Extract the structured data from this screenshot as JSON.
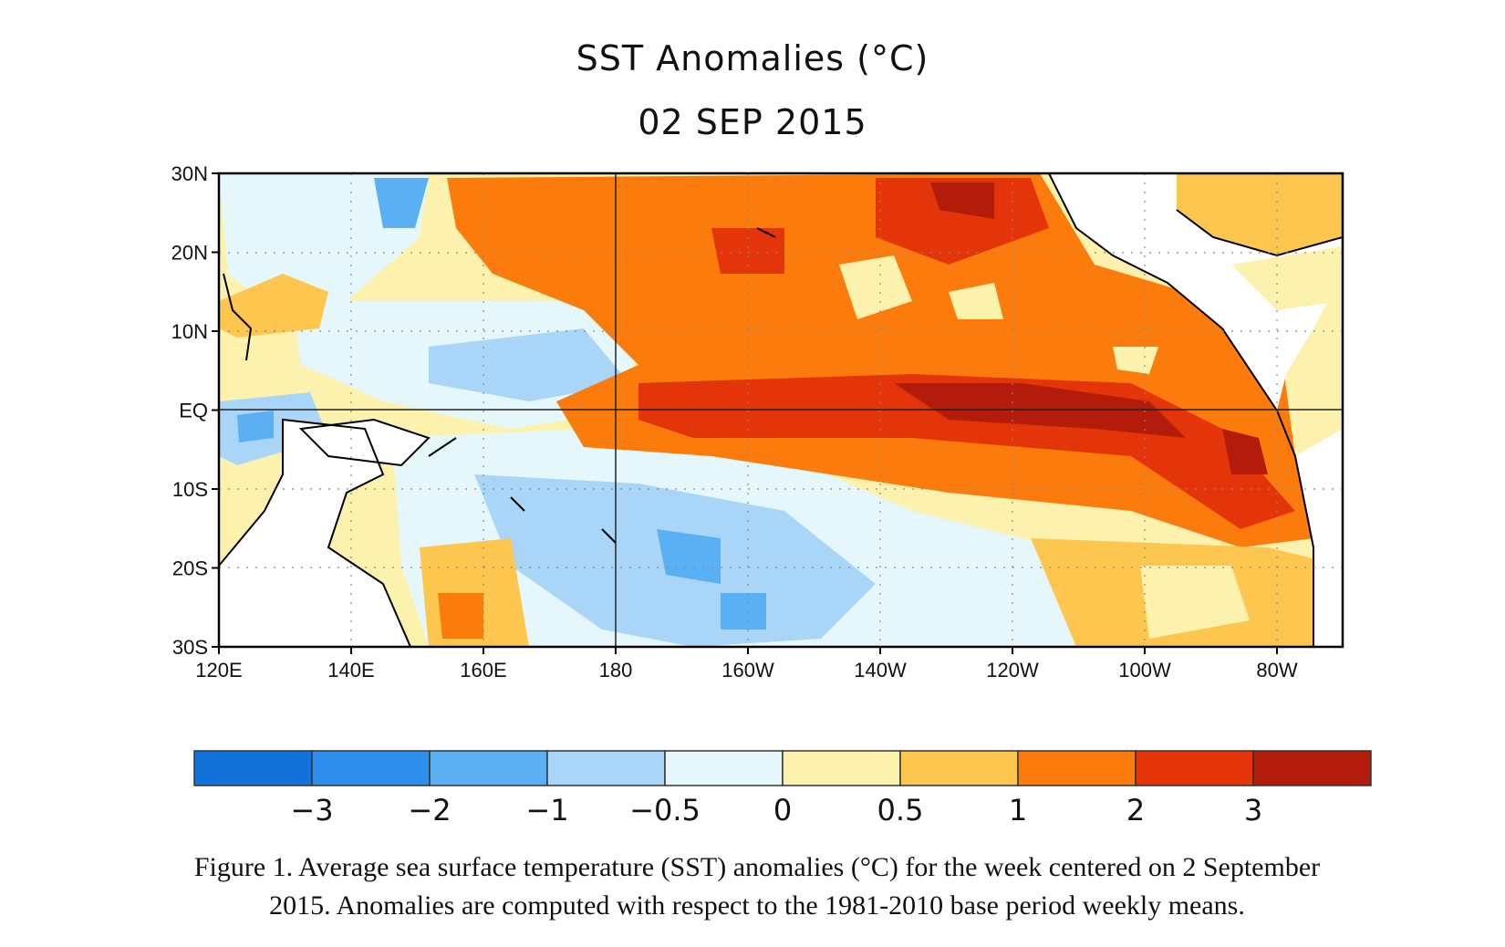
{
  "chart_data": {
    "type": "heatmap",
    "title": "SST Anomalies (°C)",
    "subtitle": "02 SEP 2015",
    "lat_ticks": [
      "30N",
      "20N",
      "10N",
      "EQ",
      "10S",
      "20S",
      "30S"
    ],
    "lon_ticks": [
      "120E",
      "140E",
      "160E",
      "180",
      "160W",
      "140W",
      "120W",
      "100W",
      "80W"
    ],
    "lat_range": [
      -30,
      30
    ],
    "lon_range_degE": [
      120,
      290
    ],
    "colorbar": {
      "colors": [
        "#1372d9",
        "#2e90ec",
        "#5ab0f2",
        "#a9d6f8",
        "#e6f7fb",
        "#fdf2ad",
        "#fdc64f",
        "#fb7c0d",
        "#e4340a",
        "#b31b0a"
      ],
      "labels": [
        "−3",
        "−2",
        "−1",
        "−0.5",
        "0",
        "0.5",
        "1",
        "2",
        "3"
      ]
    }
  },
  "caption": {
    "line1": "Figure 1. Average sea surface temperature (SST) anomalies (°C) for the week centered on 2 September",
    "line2": "2015.  Anomalies are computed with respect to the 1981-2010 base period weekly means."
  }
}
